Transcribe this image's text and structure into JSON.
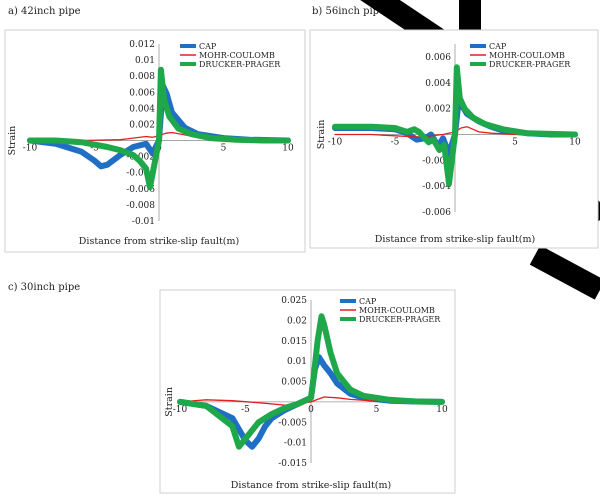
{
  "colors": {
    "cap": "#1f6fc4",
    "mohr": "#e02020",
    "drucker": "#1fa84a"
  },
  "chart_data": [
    {
      "type": "line",
      "panel_title": "a) 42inch pipe",
      "xlabel": "Distance from strike-slip fault(m)",
      "ylabel": "Strain",
      "xlim": [
        -10,
        10
      ],
      "ylim": [
        -0.01,
        0.012
      ],
      "xticks": [
        -10,
        -5,
        0,
        5,
        10
      ],
      "xtick_labels": [
        "-10",
        "-5",
        "0",
        "5",
        "10"
      ],
      "yticks": [
        -0.01,
        -0.008,
        -0.006,
        -0.004,
        -0.002,
        0,
        0.002,
        0.004,
        0.006,
        0.008,
        0.01,
        0.012
      ],
      "ytick_labels": [
        "-0.01",
        "-0.008",
        "-0.006",
        "-0.004",
        "-0.002",
        "",
        "0.002",
        "0.004",
        "0.006",
        "0.008",
        "0.01",
        "0.012"
      ],
      "legend_position": "top-right",
      "series": [
        {
          "name": "CAP",
          "color_key": "cap",
          "width": 6,
          "x": [
            -10,
            -8,
            -6,
            -5,
            -4.5,
            -4,
            -3,
            -2,
            -1,
            -0.5,
            0,
            0.3,
            0.6,
            1,
            2,
            3,
            5,
            7,
            10
          ],
          "y": [
            0,
            -0.0004,
            -0.0014,
            -0.0025,
            -0.0032,
            -0.003,
            -0.0018,
            -0.0008,
            -0.0004,
            -0.0016,
            0,
            0.0068,
            0.0058,
            0.0035,
            0.0016,
            0.0008,
            0.0003,
            0.0001,
            0
          ]
        },
        {
          "name": "MOHR-COULOMB",
          "color_key": "mohr",
          "width": 1.3,
          "x": [
            -10,
            -6,
            -3,
            -1,
            -0.5,
            0,
            0.5,
            1,
            2,
            3,
            5,
            8,
            10
          ],
          "y": [
            0,
            0,
            0.0001,
            0.0005,
            0.0004,
            0.0006,
            0.0009,
            0.001,
            0.0007,
            0.0004,
            0.0001,
            0,
            0
          ]
        },
        {
          "name": "DRUCKER-PRAGER",
          "color_key": "drucker",
          "width": 6,
          "x": [
            -10,
            -8,
            -6,
            -4,
            -3,
            -2,
            -1.5,
            -1,
            -0.7,
            -0.3,
            0,
            0.15,
            0.4,
            0.8,
            1.5,
            2.5,
            4,
            6,
            8,
            10
          ],
          "y": [
            0,
            0,
            -0.0002,
            -0.0008,
            -0.0012,
            -0.0018,
            -0.0025,
            -0.0035,
            -0.0058,
            -0.0025,
            0,
            0.0088,
            0.005,
            0.003,
            0.0015,
            0.0008,
            0.0003,
            0.0001,
            0,
            0
          ]
        }
      ]
    },
    {
      "type": "line",
      "panel_title": "b) 56inch pipe",
      "xlabel": "Distance from strike-slip fault(m)",
      "ylabel": "Strain",
      "xlim": [
        -10,
        10
      ],
      "ylim": [
        -0.006,
        0.007
      ],
      "xticks": [
        -10,
        -5,
        0,
        5,
        10
      ],
      "xtick_labels": [
        "-10",
        "-5",
        "0",
        "5",
        "10"
      ],
      "yticks": [
        -0.006,
        -0.004,
        -0.002,
        0,
        0.002,
        0.004,
        0.006
      ],
      "ytick_labels": [
        "-0.006",
        "-0.004",
        "-0.002",
        "",
        "0.002",
        "0.004",
        "0.006"
      ],
      "legend_position": "top-right",
      "series": [
        {
          "name": "CAP",
          "color_key": "cap",
          "width": 6,
          "x": [
            -10,
            -7,
            -5,
            -4,
            -3.2,
            -2.5,
            -2,
            -1.4,
            -1,
            -0.5,
            0,
            0.3,
            0.6,
            1,
            2,
            3,
            4,
            6,
            8,
            10
          ],
          "y": [
            0.0005,
            0.0005,
            0.0004,
            0.0001,
            -0.0004,
            -0.0003,
            0,
            -0.0009,
            -0.0003,
            -0.0015,
            0,
            0.0026,
            0.0022,
            0.0016,
            0.001,
            0.0006,
            0.0003,
            0.0001,
            0,
            0
          ]
        },
        {
          "name": "MOHR-COULOMB",
          "color_key": "mohr",
          "width": 1.3,
          "x": [
            -10,
            -7,
            -5,
            -3,
            -2,
            -1,
            0,
            0.5,
            1,
            1.5,
            2,
            3,
            5,
            10
          ],
          "y": [
            0,
            0,
            -0.0001,
            -0.0002,
            -0.0001,
            0,
            0.0002,
            0.0005,
            0.0006,
            0.0004,
            0.0002,
            0.0001,
            0,
            0
          ]
        },
        {
          "name": "DRUCKER-PRAGER",
          "color_key": "drucker",
          "width": 6,
          "x": [
            -10,
            -7,
            -5,
            -4,
            -3.4,
            -3,
            -2.2,
            -1.8,
            -1.3,
            -0.9,
            -0.5,
            0,
            0.15,
            0.4,
            0.8,
            1.5,
            2.5,
            4,
            6,
            10
          ],
          "y": [
            0.0006,
            0.0006,
            0.0005,
            0.0002,
            0.0004,
            0.0002,
            -0.0006,
            -0.0004,
            -0.0012,
            -0.0008,
            -0.0038,
            0,
            0.0052,
            0.0028,
            0.002,
            0.0013,
            0.0008,
            0.0004,
            0.0001,
            0
          ]
        }
      ]
    },
    {
      "type": "line",
      "panel_title": "c) 30inch pipe",
      "xlabel": "Distance from strike-slip fault(m)",
      "ylabel": "Strain",
      "xlim": [
        -10,
        10
      ],
      "ylim": [
        -0.015,
        0.025
      ],
      "xticks": [
        -10,
        -5,
        0,
        5,
        10
      ],
      "xtick_labels": [
        "-10",
        "-5",
        "0",
        "5",
        "10"
      ],
      "yticks": [
        -0.015,
        -0.01,
        -0.005,
        0,
        0.005,
        0.01,
        0.015,
        0.02,
        0.025
      ],
      "ytick_labels": [
        "-0.015",
        "-0.01",
        "-0.005",
        "",
        "0.005",
        "0.01",
        "0.015",
        "0.02",
        "0.025"
      ],
      "legend_position": "top-right",
      "series": [
        {
          "name": "CAP",
          "color_key": "cap",
          "width": 6,
          "x": [
            -10,
            -8,
            -6,
            -5,
            -4.5,
            -4,
            -3.5,
            -3,
            -2,
            -1,
            0,
            0.3,
            0.6,
            1,
            1.5,
            2,
            3,
            4,
            6,
            8,
            10
          ],
          "y": [
            0,
            -0.001,
            -0.004,
            -0.0095,
            -0.011,
            -0.009,
            -0.006,
            -0.004,
            -0.002,
            -0.0005,
            0.001,
            0.008,
            0.011,
            0.009,
            0.007,
            0.0045,
            0.002,
            0.001,
            0.0003,
            0.0001,
            0
          ]
        },
        {
          "name": "MOHR-COULOMB",
          "color_key": "mohr",
          "width": 1.3,
          "x": [
            -10,
            -8,
            -6,
            -4,
            -2,
            -1,
            0,
            0.5,
            1,
            2,
            3,
            5,
            8,
            10
          ],
          "y": [
            0,
            0.0005,
            0.0003,
            -0.0002,
            -0.0008,
            -0.0005,
            0,
            0.0006,
            0.0012,
            0.001,
            0.0006,
            0.0002,
            0,
            0
          ]
        },
        {
          "name": "DRUCKER-PRAGER",
          "color_key": "drucker",
          "width": 6,
          "x": [
            -10,
            -8,
            -6,
            -5.5,
            -5,
            -4.5,
            -4,
            -3,
            -2,
            -1,
            0,
            0.2,
            0.5,
            0.8,
            1,
            1.5,
            2,
            3,
            4,
            6,
            8,
            10
          ],
          "y": [
            0,
            -0.001,
            -0.006,
            -0.011,
            -0.009,
            -0.007,
            -0.005,
            -0.003,
            -0.0015,
            -0.0005,
            0.001,
            0.006,
            0.015,
            0.021,
            0.019,
            0.012,
            0.007,
            0.003,
            0.0015,
            0.0005,
            0.0001,
            0
          ]
        }
      ]
    }
  ]
}
